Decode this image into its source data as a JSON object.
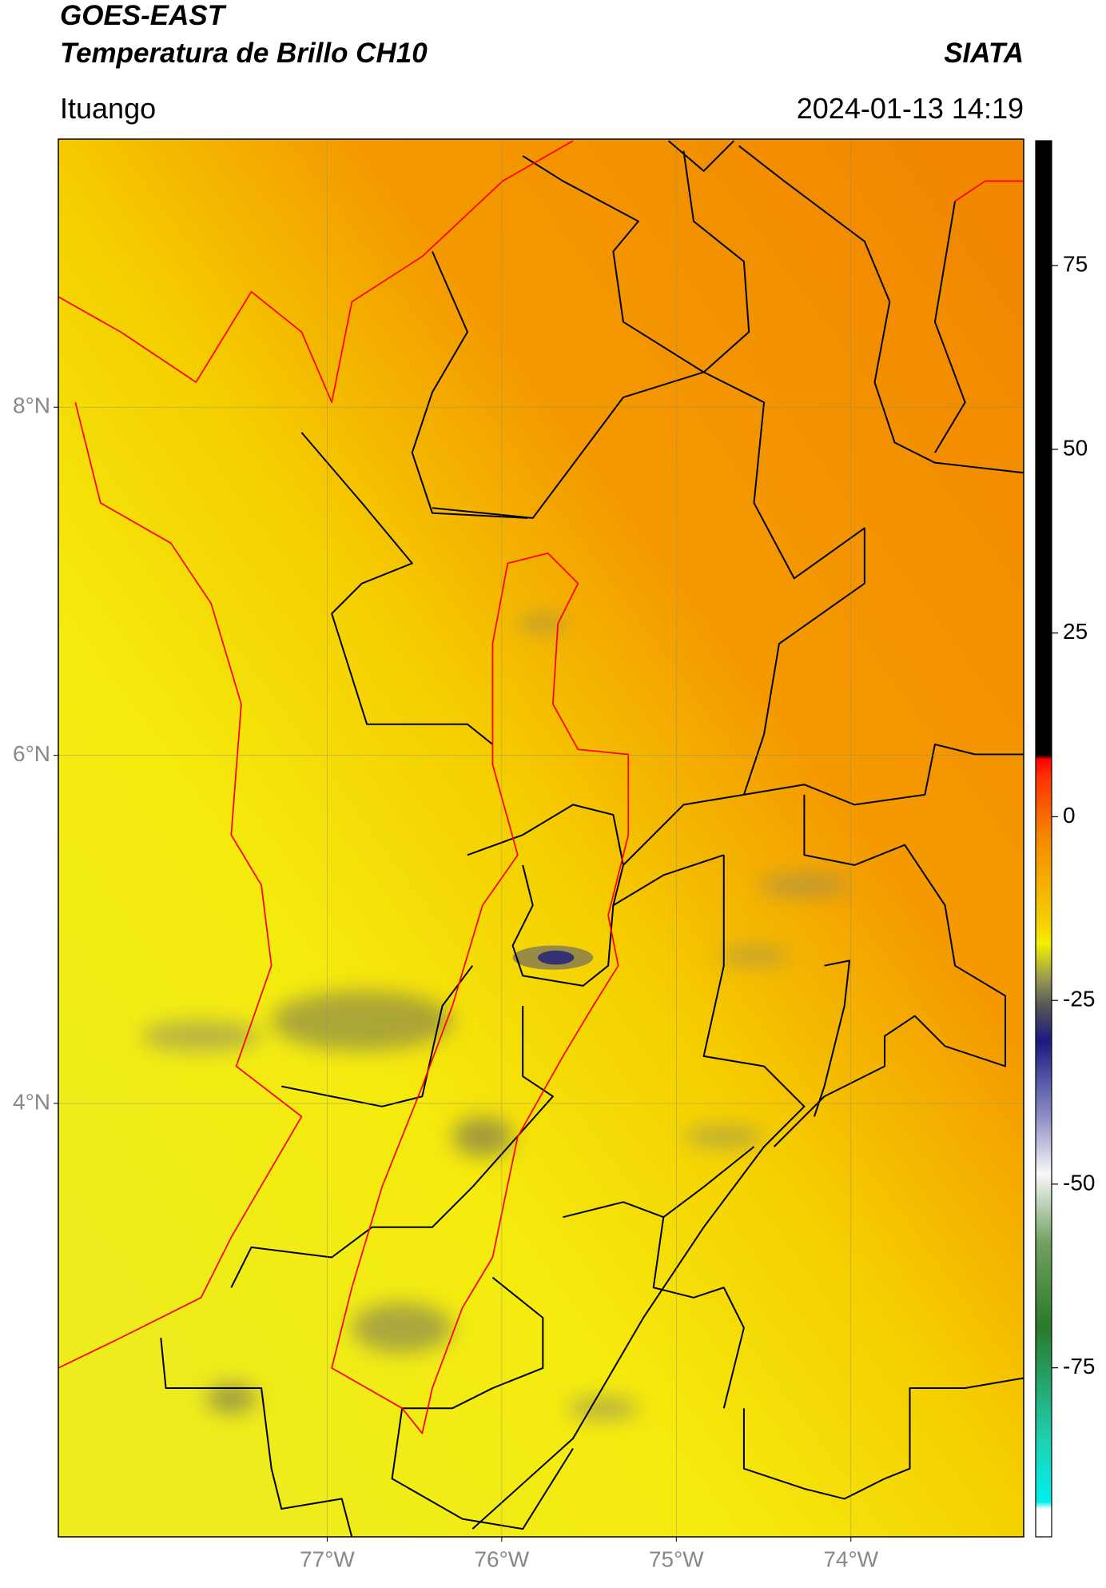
{
  "header": {
    "title": "GOES-EAST",
    "subtitle": "Temperatura de Brillo CH10",
    "source": "SIATA",
    "location": "Ituango",
    "datetime": "2024-01-13 14:19"
  },
  "map": {
    "xlim": [
      -78.54,
      -73.01
    ],
    "ylim": [
      1.51,
      9.54
    ],
    "xticks": [
      {
        "value": -77,
        "label": "77°W"
      },
      {
        "value": -76,
        "label": "76°W"
      },
      {
        "value": -75,
        "label": "75°W"
      },
      {
        "value": -74,
        "label": "74°W"
      }
    ],
    "yticks": [
      {
        "value": 8,
        "label": "8°N"
      },
      {
        "value": 6,
        "label": "6°N"
      },
      {
        "value": 4,
        "label": "4°N"
      }
    ],
    "grid": true
  },
  "colorbar": {
    "lim": [
      -98,
      92
    ],
    "ticks": [
      75,
      50,
      25,
      0,
      -25,
      -50,
      -75
    ]
  }
}
